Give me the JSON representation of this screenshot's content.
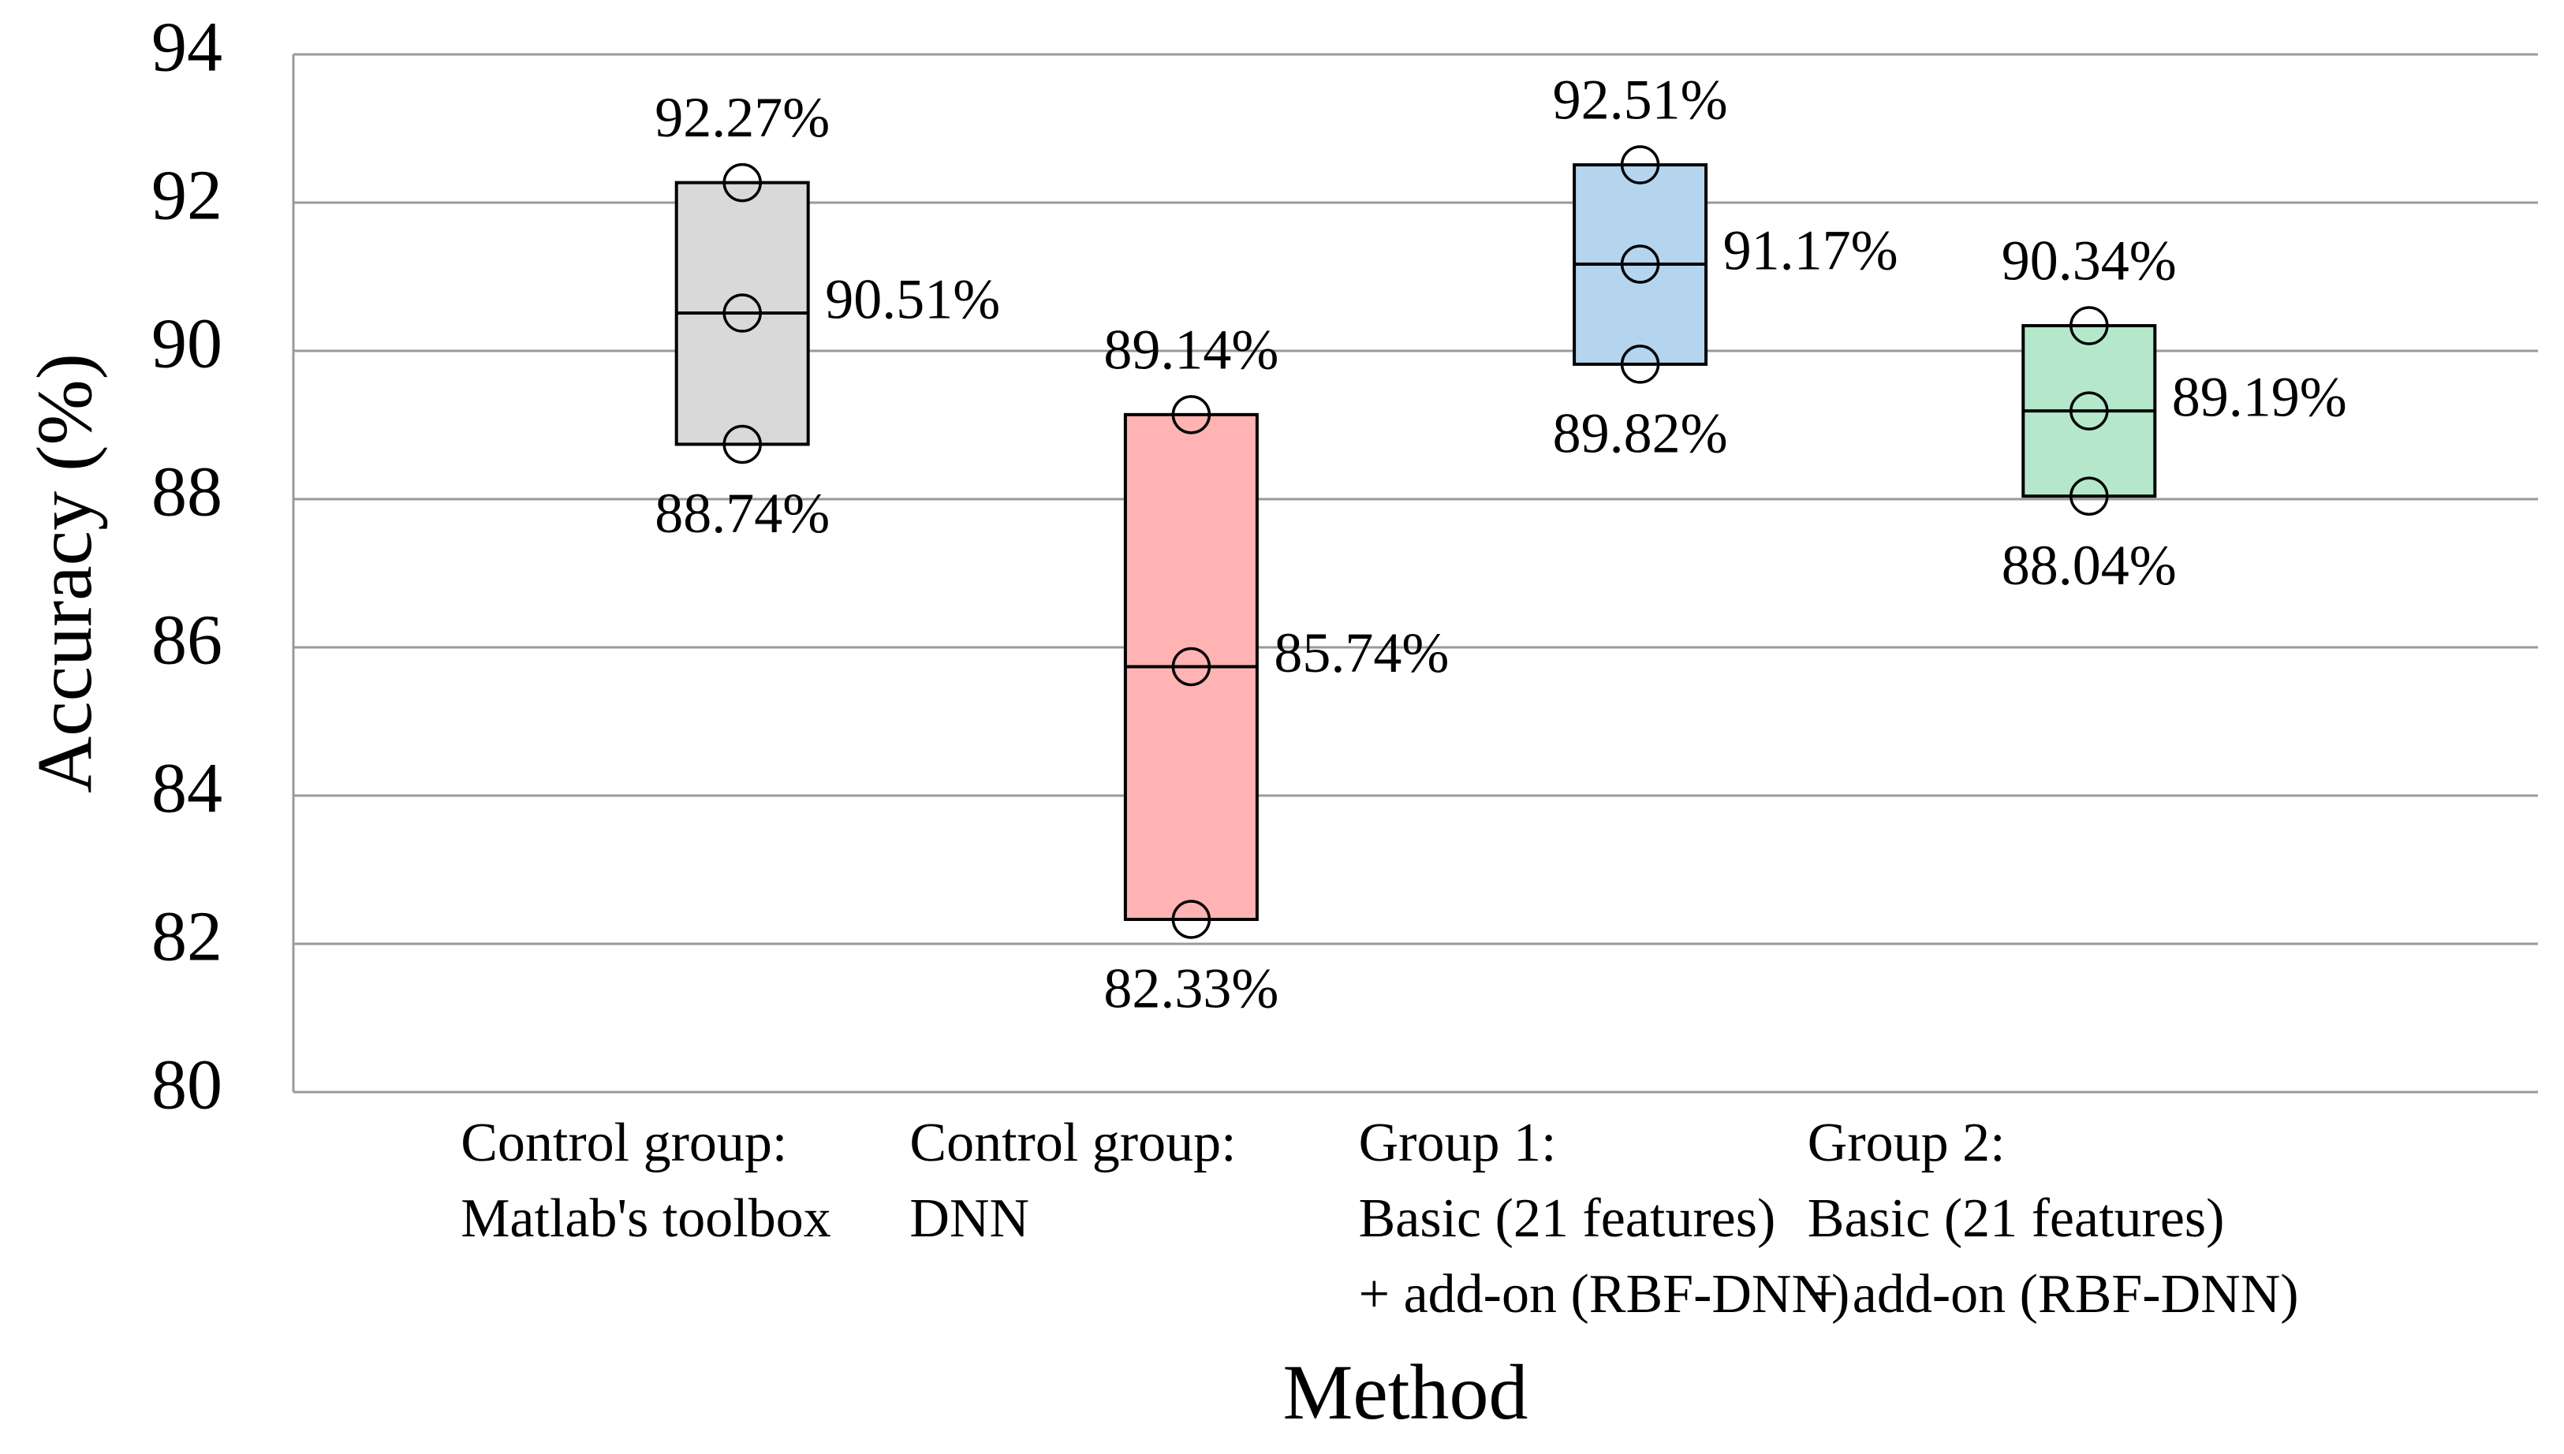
{
  "chart_data": {
    "type": "box",
    "y_label": "Accuracy (%)",
    "x_label": "Method",
    "categories": [
      [
        "Control group:",
        "Matlab's toolbox"
      ],
      [
        "Control group:",
        "DNN"
      ],
      [
        "Group 1:",
        "Basic (21 features)",
        "+ add-on (RBF-DNN)"
      ],
      [
        "Group 2:",
        "Basic (21 features)",
        "+ add-on (RBF-DNN)"
      ]
    ],
    "colors": [
      "#d9d9d9",
      "#ffb3b3",
      "#b5d5ef",
      "#b5e8cb"
    ],
    "highs": {
      "values": [
        92.27,
        89.14,
        92.51,
        90.34
      ],
      "value_labels": [
        "92.27%",
        "89.14%",
        "92.51%",
        "90.34%"
      ]
    },
    "means": {
      "values": [
        90.51,
        85.74,
        91.17,
        89.19
      ],
      "value_labels": [
        "90.51%",
        "85.74%",
        "91.17%",
        "89.19%"
      ]
    },
    "lows": {
      "values": [
        88.74,
        82.33,
        89.82,
        88.04
      ],
      "value_labels": [
        "88.74%",
        "82.33%",
        "89.82%",
        "88.04%"
      ]
    },
    "ylim": [
      80,
      94
    ],
    "yticks": [
      80,
      82,
      84,
      86,
      88,
      90,
      92,
      94
    ],
    "grid": true
  }
}
